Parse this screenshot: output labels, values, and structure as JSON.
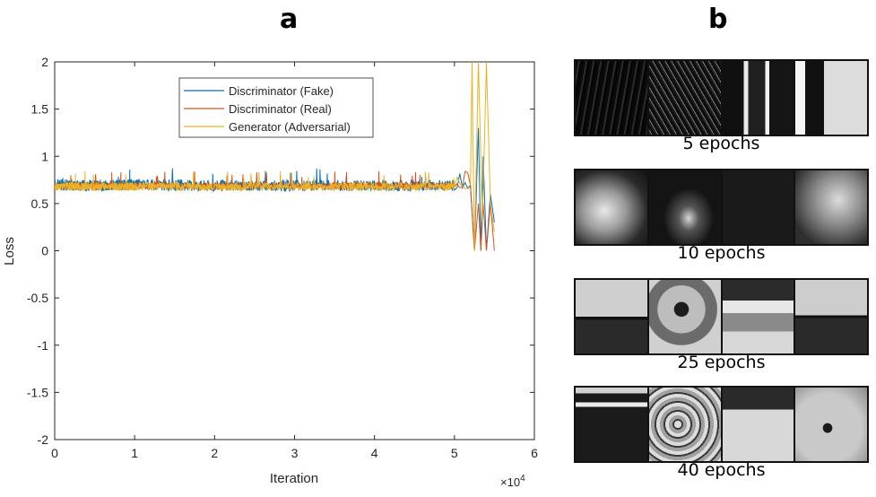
{
  "panels": {
    "a": "a",
    "b": "b"
  },
  "chart_data": {
    "type": "line",
    "xlabel": "Iteration",
    "ylabel": "Loss",
    "x_exponent_label": "×10",
    "x_exponent_power": "4",
    "xlim": [
      0,
      6
    ],
    "ylim": [
      -2,
      2
    ],
    "xticks": [
      "0",
      "1",
      "2",
      "3",
      "4",
      "5",
      "6"
    ],
    "yticks": [
      "2",
      "1.5",
      "1",
      "0.5",
      "0",
      "-0.5",
      "-1",
      "-1.5",
      "-2"
    ],
    "legend_position": "top-center",
    "series": [
      {
        "name": "Discriminator (Fake)",
        "color": "#0072BD",
        "x": [
          0,
          0.5,
          1,
          2,
          3,
          4,
          5,
          5.2,
          5.25,
          5.3,
          5.33,
          5.36,
          5.4,
          5.45,
          5.5
        ],
        "y": [
          0.7,
          0.69,
          0.7,
          0.69,
          0.69,
          0.69,
          0.69,
          0.69,
          0.0,
          1.3,
          0.0,
          1.0,
          0.0,
          0.6,
          0.3
        ]
      },
      {
        "name": "Discriminator (Real)",
        "color": "#D95319",
        "x": [
          0,
          0.5,
          1,
          2,
          3,
          4,
          5,
          5.2,
          5.25,
          5.3,
          5.33,
          5.36,
          5.4,
          5.45,
          5.5
        ],
        "y": [
          0.69,
          0.69,
          0.69,
          0.69,
          0.69,
          0.69,
          0.69,
          0.69,
          0.0,
          0.5,
          0.0,
          0.5,
          0.0,
          0.5,
          0.0
        ]
      },
      {
        "name": "Generator (Adversarial)",
        "color": "#EDB120",
        "x": [
          0,
          0.5,
          1,
          2,
          3,
          4,
          5,
          5.2,
          5.22,
          5.25,
          5.3,
          5.35,
          5.4,
          5.45,
          5.5
        ],
        "y": [
          0.68,
          0.68,
          0.68,
          0.68,
          0.68,
          0.68,
          0.68,
          0.7,
          2.0,
          0.0,
          2.0,
          0.3,
          2.0,
          0.5,
          0.2
        ]
      }
    ]
  },
  "samples": [
    {
      "label": "5 epochs"
    },
    {
      "label": "10 epochs"
    },
    {
      "label": "25 epochs"
    },
    {
      "label": "40 epochs"
    }
  ]
}
